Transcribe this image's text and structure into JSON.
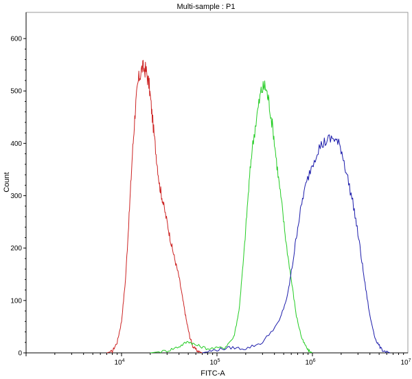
{
  "chart_data": {
    "type": "area",
    "title": "Multi-sample : P1",
    "xlabel": "FITC-A",
    "ylabel": "Count",
    "xscale": "log",
    "xlim": [
      1000,
      10000000
    ],
    "ylim": [
      0,
      650
    ],
    "grid": false,
    "x_ticks": [
      {
        "value": 10000,
        "base": "10",
        "exp": "4"
      },
      {
        "value": 100000,
        "base": "10",
        "exp": "5"
      },
      {
        "value": 1000000,
        "base": "10",
        "exp": "6"
      },
      {
        "value": 10000000,
        "base": "10",
        "exp": "7"
      }
    ],
    "y_ticks": [
      0,
      100,
      200,
      300,
      400,
      500,
      600
    ],
    "series": [
      {
        "color": "#cc2222",
        "points": [
          [
            7000,
            0
          ],
          [
            8000,
            3
          ],
          [
            9000,
            20
          ],
          [
            10000,
            60
          ],
          [
            11000,
            140
          ],
          [
            12000,
            260
          ],
          [
            13000,
            380
          ],
          [
            14000,
            470
          ],
          [
            15000,
            520
          ],
          [
            16500,
            545
          ],
          [
            18000,
            540
          ],
          [
            19500,
            510
          ],
          [
            21000,
            450
          ],
          [
            23000,
            380
          ],
          [
            25000,
            320
          ],
          [
            27000,
            290
          ],
          [
            30000,
            250
          ],
          [
            33000,
            210
          ],
          [
            36000,
            180
          ],
          [
            40000,
            145
          ],
          [
            44000,
            100
          ],
          [
            48000,
            60
          ],
          [
            52000,
            30
          ],
          [
            56000,
            12
          ],
          [
            62000,
            4
          ],
          [
            70000,
            0
          ]
        ]
      },
      {
        "color": "#22cc22",
        "points": [
          [
            20000,
            0
          ],
          [
            30000,
            4
          ],
          [
            40000,
            12
          ],
          [
            50000,
            22
          ],
          [
            60000,
            15
          ],
          [
            80000,
            8
          ],
          [
            120000,
            10
          ],
          [
            150000,
            30
          ],
          [
            170000,
            80
          ],
          [
            190000,
            180
          ],
          [
            210000,
            290
          ],
          [
            230000,
            380
          ],
          [
            260000,
            450
          ],
          [
            290000,
            500
          ],
          [
            320000,
            510
          ],
          [
            350000,
            480
          ],
          [
            390000,
            420
          ],
          [
            430000,
            350
          ],
          [
            480000,
            280
          ],
          [
            530000,
            210
          ],
          [
            600000,
            140
          ],
          [
            680000,
            70
          ],
          [
            780000,
            25
          ],
          [
            900000,
            5
          ],
          [
            1000000,
            0
          ]
        ]
      },
      {
        "color": "#1a1aaa",
        "points": [
          [
            70000,
            0
          ],
          [
            100000,
            6
          ],
          [
            140000,
            10
          ],
          [
            200000,
            8
          ],
          [
            300000,
            20
          ],
          [
            450000,
            60
          ],
          [
            550000,
            110
          ],
          [
            620000,
            170
          ],
          [
            700000,
            240
          ],
          [
            800000,
            300
          ],
          [
            950000,
            350
          ],
          [
            1150000,
            390
          ],
          [
            1400000,
            405
          ],
          [
            1700000,
            410
          ],
          [
            2000000,
            390
          ],
          [
            2300000,
            340
          ],
          [
            2700000,
            280
          ],
          [
            3100000,
            210
          ],
          [
            3500000,
            140
          ],
          [
            4000000,
            70
          ],
          [
            4600000,
            25
          ],
          [
            5300000,
            6
          ],
          [
            6500000,
            0
          ]
        ]
      }
    ]
  }
}
